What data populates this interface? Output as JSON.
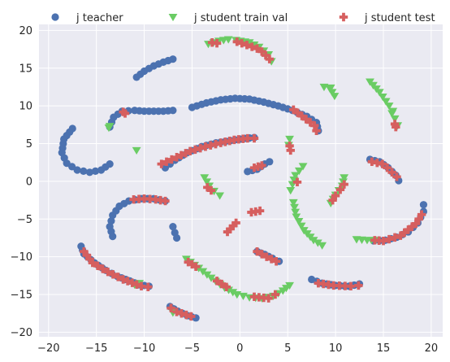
{
  "chart_data": {
    "type": "scatter",
    "title": "",
    "xlabel": "",
    "ylabel": "",
    "xlim": [
      -21,
      21.2
    ],
    "ylim": [
      -20.6,
      20.8
    ],
    "x_ticks": [
      -20,
      -15,
      -10,
      -5,
      0,
      5,
      10,
      15,
      20
    ],
    "y_ticks": [
      -20,
      -15,
      -10,
      -5,
      0,
      5,
      10,
      15,
      20
    ],
    "grid": true,
    "legend_position": "top, above plot",
    "colors": {
      "background": "#eaeaf2",
      "grid": "#ffffff",
      "teacher": "#4c72b0",
      "student_train_val": "#6acc64",
      "student_test": "#d65f5f"
    },
    "series": [
      {
        "name": "j teacher",
        "marker": "circle",
        "color": "#4c72b0",
        "curves": [
          [
            [
              -17.5,
              7.0
            ],
            [
              -18.4,
              5.6
            ],
            [
              -18.6,
              3.8
            ],
            [
              -18.1,
              2.4
            ],
            [
              -17.0,
              1.5
            ],
            [
              -15.7,
              1.2
            ],
            [
              -14.5,
              1.5
            ],
            [
              -13.6,
              2.3
            ]
          ],
          [
            [
              -10.8,
              13.8
            ],
            [
              -10.0,
              14.6
            ],
            [
              -9.0,
              15.3
            ],
            [
              -8.0,
              15.8
            ],
            [
              -7.0,
              16.2
            ]
          ],
          [
            [
              -13.6,
              7.2
            ],
            [
              -13.2,
              8.5
            ],
            [
              -12.3,
              9.3
            ],
            [
              -11.0,
              9.4
            ],
            [
              -10.0,
              9.3
            ],
            [
              -9.0,
              9.3
            ],
            [
              -8.0,
              9.3
            ],
            [
              -7.0,
              9.4
            ]
          ],
          [
            [
              -5.0,
              9.8
            ],
            [
              -3.5,
              10.4
            ],
            [
              -2.0,
              10.8
            ],
            [
              -0.5,
              11.0
            ],
            [
              1.0,
              10.9
            ],
            [
              2.5,
              10.5
            ],
            [
              4.0,
              10.0
            ],
            [
              5.5,
              9.4
            ],
            [
              7.0,
              8.6
            ],
            [
              8.0,
              7.8
            ],
            [
              8.2,
              6.7
            ]
          ],
          [
            [
              -7.8,
              1.8
            ],
            [
              -6.8,
              2.8
            ],
            [
              -5.5,
              3.8
            ],
            [
              -4.0,
              4.6
            ],
            [
              -2.5,
              5.1
            ],
            [
              -1.0,
              5.4
            ],
            [
              0.5,
              5.7
            ],
            [
              1.5,
              5.8
            ]
          ],
          [
            [
              0.8,
              1.3
            ],
            [
              1.8,
              1.6
            ],
            [
              2.6,
              2.3
            ],
            [
              3.1,
              2.6
            ]
          ],
          [
            [
              -13.3,
              -7.3
            ],
            [
              -13.6,
              -6.0
            ],
            [
              -13.3,
              -4.5
            ],
            [
              -12.6,
              -3.3
            ],
            [
              -11.6,
              -2.6
            ],
            [
              -10.3,
              -2.3
            ],
            [
              -9.0,
              -2.3
            ],
            [
              -7.8,
              -2.6
            ]
          ],
          [
            [
              -7.0,
              -6.0
            ],
            [
              -6.8,
              -6.8
            ],
            [
              -6.6,
              -7.5
            ]
          ],
          [
            [
              -16.6,
              -8.6
            ],
            [
              -16.3,
              -9.6
            ],
            [
              -15.2,
              -10.8
            ],
            [
              -14.0,
              -11.8
            ],
            [
              -12.8,
              -12.6
            ],
            [
              -11.5,
              -13.2
            ],
            [
              -10.5,
              -13.7
            ],
            [
              -9.5,
              -13.9
            ]
          ],
          [
            [
              -7.3,
              -16.6
            ],
            [
              -6.5,
              -17.2
            ],
            [
              -5.5,
              -17.8
            ],
            [
              -4.6,
              -18.1
            ]
          ],
          [
            [
              1.8,
              -9.3
            ],
            [
              2.6,
              -9.7
            ],
            [
              3.4,
              -10.2
            ],
            [
              4.1,
              -10.6
            ]
          ],
          [
            [
              7.5,
              -13.0
            ],
            [
              8.6,
              -13.5
            ],
            [
              10.0,
              -13.8
            ],
            [
              11.4,
              -13.9
            ],
            [
              12.5,
              -13.6
            ]
          ],
          [
            [
              13.6,
              2.9
            ],
            [
              14.6,
              2.6
            ],
            [
              15.5,
              1.8
            ],
            [
              16.3,
              0.8
            ],
            [
              16.6,
              0.1
            ]
          ],
          [
            [
              14.0,
              -7.9
            ],
            [
              15.2,
              -7.8
            ],
            [
              16.4,
              -7.4
            ],
            [
              17.6,
              -6.7
            ],
            [
              18.6,
              -5.5
            ],
            [
              19.2,
              -4.0
            ],
            [
              19.2,
              -3.1
            ]
          ]
        ]
      },
      {
        "name": "j student train val",
        "marker": "triangle-down",
        "color": "#6acc64",
        "curves": [
          [
            [
              -13.7,
              7.1
            ],
            [
              -13.6,
              7.3
            ]
          ],
          [
            [
              -10.8,
              4.1
            ]
          ],
          [
            [
              -3.3,
              18.2
            ],
            [
              -2.2,
              18.6
            ],
            [
              -1.2,
              18.8
            ]
          ],
          [
            [
              -0.4,
              18.7
            ],
            [
              1.0,
              18.4
            ],
            [
              2.0,
              17.8
            ],
            [
              3.0,
              16.8
            ],
            [
              3.3,
              15.9
            ]
          ],
          [
            [
              8.8,
              12.5
            ],
            [
              9.5,
              12.4
            ]
          ],
          [
            [
              9.4,
              12.3
            ],
            [
              9.9,
              11.3
            ]
          ],
          [
            [
              13.6,
              13.2
            ],
            [
              14.6,
              11.8
            ],
            [
              15.6,
              10.0
            ],
            [
              16.0,
              9.3
            ]
          ],
          [
            [
              15.9,
              9.0
            ],
            [
              16.2,
              8.3
            ],
            [
              16.5,
              7.4
            ]
          ],
          [
            [
              5.2,
              5.6
            ],
            [
              5.1,
              4.8
            ]
          ],
          [
            [
              -3.7,
              0.5
            ],
            [
              -3.2,
              -0.6
            ],
            [
              -2.7,
              -1.3
            ],
            [
              -2.1,
              -1.9
            ]
          ],
          [
            [
              6.6,
              2.0
            ],
            [
              5.8,
              0.8
            ],
            [
              5.5,
              -0.4
            ],
            [
              5.3,
              -1.2
            ]
          ],
          [
            [
              10.9,
              0.5
            ],
            [
              10.7,
              -0.6
            ],
            [
              10.0,
              -1.8
            ],
            [
              9.5,
              -2.9
            ]
          ],
          [
            [
              5.6,
              -2.8
            ],
            [
              5.9,
              -4.7
            ],
            [
              6.7,
              -6.5
            ],
            [
              7.7,
              -7.8
            ],
            [
              8.6,
              -8.5
            ]
          ],
          [
            [
              12.2,
              -7.7
            ],
            [
              13.3,
              -7.8
            ],
            [
              14.2,
              -7.8
            ]
          ],
          [
            [
              -10.5,
              -13.5
            ],
            [
              -11.0,
              -13.7
            ]
          ],
          [
            [
              -5.6,
              -10.3
            ],
            [
              -4.3,
              -11.5
            ],
            [
              -3.0,
              -12.8
            ],
            [
              -1.6,
              -14.1
            ],
            [
              -0.3,
              -15.0
            ],
            [
              1.0,
              -15.4
            ],
            [
              2.3,
              -15.5
            ],
            [
              3.5,
              -15.2
            ],
            [
              4.5,
              -14.5
            ],
            [
              5.2,
              -13.8
            ]
          ],
          [
            [
              -7.0,
              -17.4
            ]
          ]
        ]
      },
      {
        "name": "j student test",
        "marker": "plus",
        "color": "#d65f5f",
        "curves": [
          [
            [
              -12.2,
              9.2
            ],
            [
              -12.0,
              9.0
            ]
          ],
          [
            [
              -2.9,
              18.4
            ],
            [
              -2.4,
              18.3
            ]
          ],
          [
            [
              -0.3,
              18.5
            ],
            [
              0.2,
              18.3
            ],
            [
              1.8,
              17.6
            ],
            [
              2.3,
              17.2
            ],
            [
              3.1,
              16.2
            ]
          ],
          [
            [
              16.2,
              7.6
            ],
            [
              16.3,
              7.2
            ]
          ],
          [
            [
              5.6,
              9.5
            ],
            [
              7.8,
              7.4
            ],
            [
              8.0,
              6.7
            ]
          ],
          [
            [
              -8.2,
              2.3
            ],
            [
              -6.6,
              3.2
            ],
            [
              -5.2,
              4.0
            ],
            [
              -3.6,
              4.6
            ],
            [
              -2.0,
              5.1
            ],
            [
              -0.6,
              5.5
            ],
            [
              0.8,
              5.7
            ],
            [
              1.5,
              5.7
            ]
          ],
          [
            [
              5.2,
              4.7
            ],
            [
              5.3,
              4.1
            ]
          ],
          [
            [
              1.5,
              1.8
            ],
            [
              2.3,
              2.1
            ]
          ],
          [
            [
              13.8,
              2.6
            ],
            [
              14.9,
              2.3
            ],
            [
              15.4,
              1.8
            ],
            [
              16.4,
              0.6
            ]
          ],
          [
            [
              -3.4,
              -0.8
            ],
            [
              -3.0,
              -1.2
            ]
          ],
          [
            [
              6.0,
              -0.1
            ]
          ],
          [
            [
              10.9,
              -0.4
            ],
            [
              10.5,
              -1.1
            ],
            [
              10.0,
              -1.9
            ],
            [
              9.7,
              -2.5
            ]
          ],
          [
            [
              -11.1,
              -2.4
            ],
            [
              -10.0,
              -2.3
            ],
            [
              -8.8,
              -2.4
            ],
            [
              -7.8,
              -2.6
            ]
          ],
          [
            [
              -0.4,
              -5.5
            ],
            [
              -1.0,
              -6.3
            ],
            [
              -1.3,
              -6.7
            ]
          ],
          [
            [
              1.2,
              -4.1
            ],
            [
              2.1,
              -3.9
            ]
          ],
          [
            [
              -16.3,
              -9.3
            ],
            [
              -15.4,
              -10.8
            ],
            [
              -13.8,
              -12.0
            ],
            [
              -12.2,
              -13.0
            ],
            [
              -10.3,
              -13.9
            ],
            [
              -9.6,
              -14.0
            ]
          ],
          [
            [
              -5.4,
              -10.7
            ],
            [
              -4.6,
              -11.3
            ]
          ],
          [
            [
              1.8,
              -9.3
            ],
            [
              2.8,
              -10.0
            ],
            [
              3.8,
              -10.6
            ]
          ],
          [
            [
              -2.4,
              -13.2
            ],
            [
              -1.4,
              -14.0
            ]
          ],
          [
            [
              1.5,
              -15.3
            ],
            [
              3.0,
              -15.5
            ],
            [
              3.7,
              -15.0
            ]
          ],
          [
            [
              -7.2,
              -16.8
            ],
            [
              -6.6,
              -17.3
            ],
            [
              -5.6,
              -17.7
            ],
            [
              -5.1,
              -17.9
            ]
          ],
          [
            [
              8.2,
              -13.5
            ],
            [
              9.8,
              -13.8
            ],
            [
              11.6,
              -13.9
            ],
            [
              12.4,
              -13.8
            ]
          ],
          [
            [
              14.1,
              -7.8
            ],
            [
              15.0,
              -7.9
            ],
            [
              16.8,
              -7.2
            ],
            [
              18.4,
              -5.6
            ],
            [
              19.0,
              -4.4
            ]
          ]
        ]
      }
    ]
  }
}
